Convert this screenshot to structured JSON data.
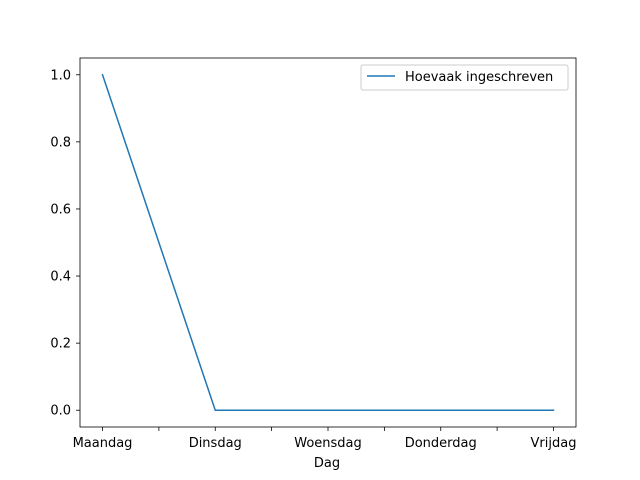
{
  "chart_data": {
    "type": "line",
    "title": "",
    "xlabel": "Dag",
    "ylabel": "",
    "categories": [
      "Maandag",
      "Dinsdag",
      "Woensdag",
      "Donderdag",
      "Vrijdag"
    ],
    "series": [
      {
        "name": "Hoevaak ingeschreven",
        "values": [
          1,
          0,
          0,
          0,
          0
        ],
        "color": "#1f77b4"
      }
    ],
    "ylim": [
      -0.05,
      1.05
    ],
    "yticks": [
      0.0,
      0.2,
      0.4,
      0.6,
      0.8,
      1.0
    ],
    "ytick_labels": [
      "0.0",
      "0.2",
      "0.4",
      "0.6",
      "0.8",
      "1.0"
    ],
    "grid": false,
    "legend_position": "top-right"
  }
}
